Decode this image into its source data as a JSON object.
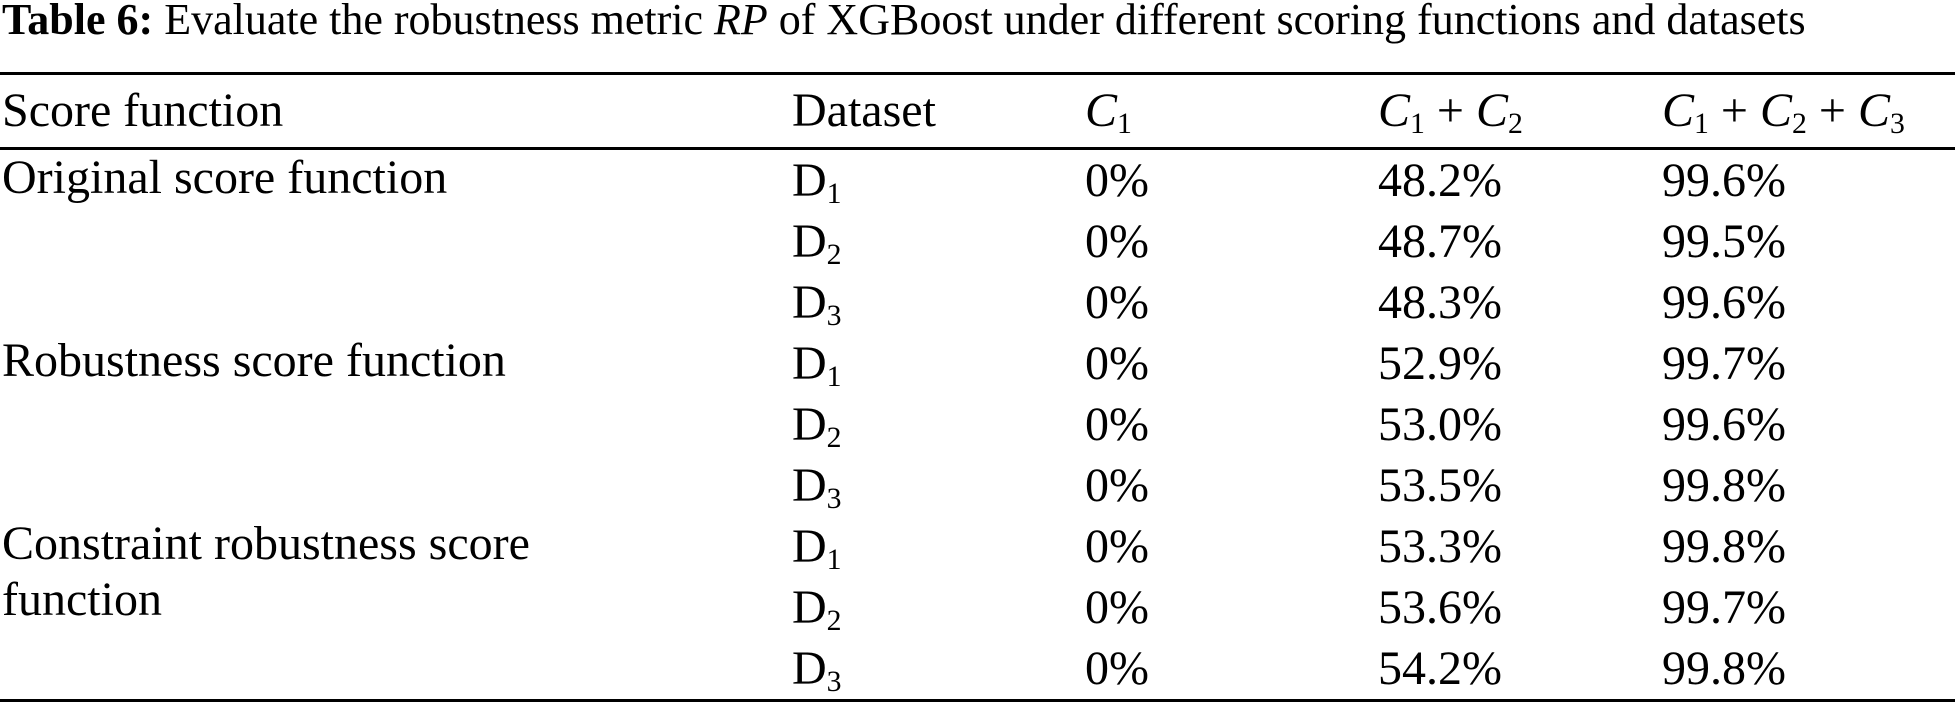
{
  "page": {
    "background_color": "#ffffff",
    "text_color": "#000000",
    "rule_color": "#000000"
  },
  "caption": {
    "label": "Table 6:",
    "text_before_metric": "Evaluate the robustness metric",
    "metric": "RP",
    "text_after_metric": "of XGBoost under different scoring functions and datasets"
  },
  "table": {
    "headers": {
      "score_function": "Score function",
      "dataset": "Dataset",
      "c1_terms": [
        [
          "C",
          "1"
        ]
      ],
      "c1c2_terms": [
        [
          "C",
          "1"
        ],
        [
          "C",
          "2"
        ]
      ],
      "c1c2c3_terms": [
        [
          "C",
          "1"
        ],
        [
          "C",
          "2"
        ],
        [
          "C",
          "3"
        ]
      ]
    },
    "groups": [
      {
        "score_function": "Original score function",
        "rows": [
          {
            "dataset": [
              "D",
              "1"
            ],
            "values": [
              "0%",
              "48.2%",
              "99.6%"
            ]
          },
          {
            "dataset": [
              "D",
              "2"
            ],
            "values": [
              "0%",
              "48.7%",
              "99.5%"
            ]
          },
          {
            "dataset": [
              "D",
              "3"
            ],
            "values": [
              "0%",
              "48.3%",
              "99.6%"
            ]
          }
        ]
      },
      {
        "score_function": "Robustness score function",
        "rows": [
          {
            "dataset": [
              "D",
              "1"
            ],
            "values": [
              "0%",
              "52.9%",
              "99.7%"
            ]
          },
          {
            "dataset": [
              "D",
              "2"
            ],
            "values": [
              "0%",
              "53.0%",
              "99.6%"
            ]
          },
          {
            "dataset": [
              "D",
              "3"
            ],
            "values": [
              "0%",
              "53.5%",
              "99.8%"
            ]
          }
        ]
      },
      {
        "score_function": "Constraint robustness score function",
        "rows": [
          {
            "dataset": [
              "D",
              "1"
            ],
            "values": [
              "0%",
              "53.3%",
              "99.8%"
            ]
          },
          {
            "dataset": [
              "D",
              "2"
            ],
            "values": [
              "0%",
              "53.6%",
              "99.7%"
            ]
          },
          {
            "dataset": [
              "D",
              "3"
            ],
            "values": [
              "0%",
              "54.2%",
              "99.8%"
            ]
          }
        ]
      }
    ]
  }
}
